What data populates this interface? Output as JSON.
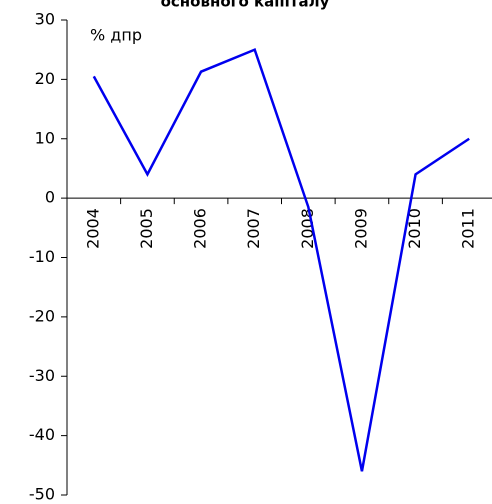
{
  "chart_data": {
    "type": "line",
    "title": "основного капіталу",
    "y_unit": "% дпр",
    "categories": [
      "2004",
      "2005",
      "2006",
      "2007",
      "2008",
      "2009",
      "2010",
      "2011"
    ],
    "series": [
      {
        "name": null,
        "color": "#0000ee",
        "values": [
          20.5,
          4,
          21.3,
          25,
          -1.5,
          -46,
          4,
          10
        ]
      }
    ],
    "ylim": [
      -50,
      30
    ],
    "yticks": [
      -50,
      -40,
      -30,
      -20,
      -10,
      0,
      10,
      20,
      30
    ],
    "grid": false
  }
}
